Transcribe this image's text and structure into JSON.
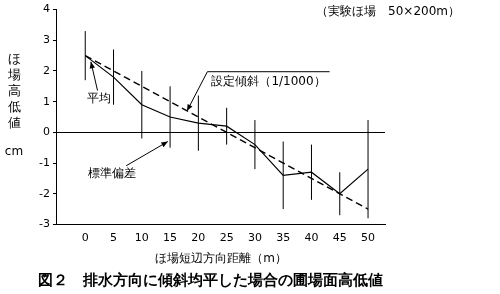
{
  "chart_data": {
    "type": "line",
    "title": "図２　排水方向に傾斜均平した場合の圃場面高低値",
    "xlabel": "ほ場短辺方向距離（m）",
    "ylabel": "ほ場高低値",
    "yunit": "cm",
    "note": "（実験ほ場　50×200m）",
    "series": [
      {
        "color": "#000000",
        "line_style": "solid",
        "x": [
          0,
          5,
          10,
          15,
          20,
          25,
          30,
          35,
          40,
          45,
          50
        ],
        "values": [
          2.5,
          1.8,
          0.9,
          0.5,
          0.3,
          0.2,
          -0.4,
          -1.4,
          -1.3,
          -2.0,
          -1.2
        ],
        "error": [
          0.8,
          0.9,
          1.1,
          1.0,
          0.9,
          0.6,
          0.8,
          1.1,
          0.9,
          0.7,
          1.6
        ]
      },
      {
        "color": "#000000",
        "line_style": "dashed",
        "x": [
          0,
          50
        ],
        "values": [
          2.5,
          -2.5
        ]
      }
    ],
    "annotations": [
      {
        "text": "平均",
        "x": 2.5,
        "y": 1.1,
        "arrow_to": [
          1,
          2.3
        ]
      },
      {
        "text": "標準偏差",
        "x": 4.8,
        "y": -1.35,
        "arrow_to": [
          14.6,
          -0.3
        ]
      },
      {
        "text": "設定傾斜（1/1000）",
        "x": 32.4,
        "y": 1.65,
        "overline": true,
        "arrow_to": [
          18,
          0.7
        ]
      }
    ],
    "xlim": [
      -5,
      53
    ],
    "xticks": [
      0,
      5,
      10,
      15,
      20,
      25,
      30,
      35,
      40,
      45,
      50
    ],
    "ylim": [
      -3,
      4
    ],
    "yticks": [
      -3,
      -2,
      -1,
      0,
      1,
      2,
      3,
      4
    ],
    "grid": false
  }
}
